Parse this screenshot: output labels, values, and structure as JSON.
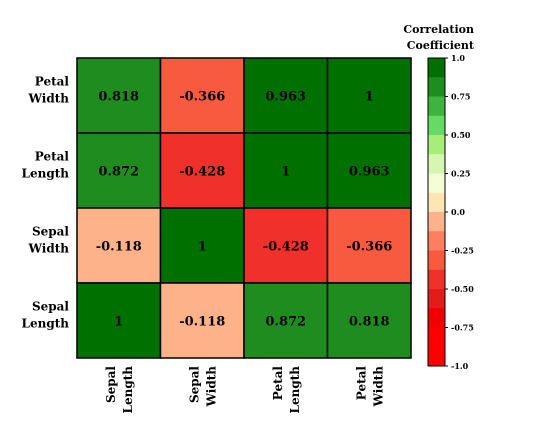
{
  "chart_data": {
    "type": "heatmap",
    "title": "",
    "x_categories": [
      [
        "Sepal",
        "Length"
      ],
      [
        "Sepal",
        "Width"
      ],
      [
        "Petal",
        "Length"
      ],
      [
        "Petal",
        "Width"
      ]
    ],
    "y_categories_top_to_bottom": [
      [
        "Petal",
        "Width"
      ],
      [
        "Petal",
        "Length"
      ],
      [
        "Sepal",
        "Width"
      ],
      [
        "Sepal",
        "Length"
      ]
    ],
    "values": [
      [
        "0.818",
        "-0.366",
        "0.963",
        "1"
      ],
      [
        "0.872",
        "-0.428",
        "1",
        "0.963"
      ],
      [
        "-0.118",
        "1",
        "-0.428",
        "-0.366"
      ],
      [
        "1",
        "-0.118",
        "0.872",
        "0.818"
      ]
    ],
    "legend": {
      "title_lines": [
        "Correlation",
        "Coefficient"
      ],
      "ticks": [
        "1.0",
        "0.75",
        "0.50",
        "0.25",
        "0.0",
        "-0.25",
        "-0.50",
        "-0.75",
        "-1.0"
      ],
      "range": [
        -1.0,
        1.0
      ],
      "step": 0.125,
      "placement": "right"
    },
    "colors": {
      "bins_top_to_bottom": [
        "#007000",
        "#1e8c1e",
        "#3fb23f",
        "#66d966",
        "#a6ee79",
        "#d5f7b0",
        "#f3fdd6",
        "#fde6b4",
        "#fdb28a",
        "#fc8060",
        "#f85a40",
        "#f0302a",
        "#e51a1a",
        "#f00000",
        "#ff0000",
        "#ff0000"
      ],
      "cell_border": "#000000"
    }
  }
}
